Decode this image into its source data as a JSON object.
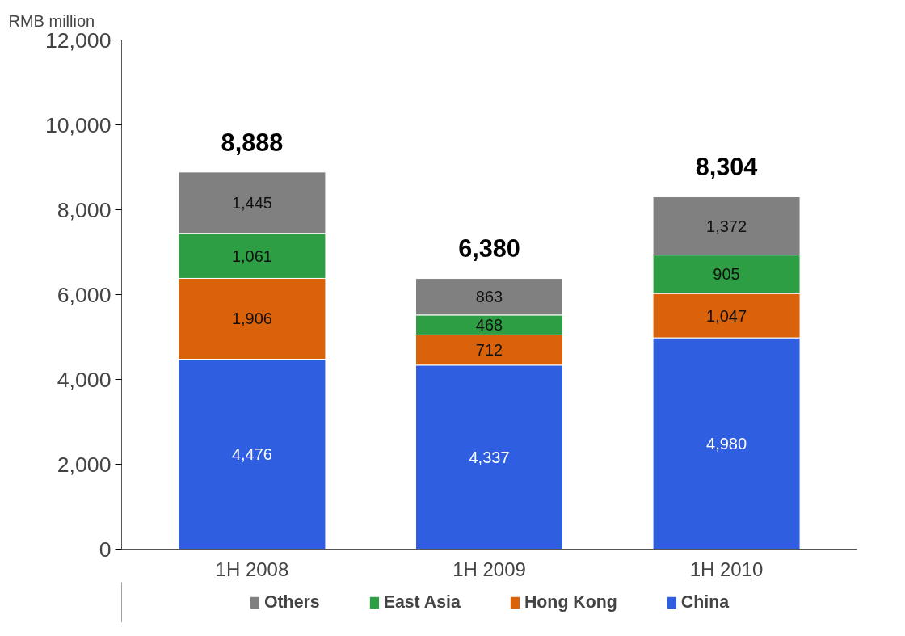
{
  "chart_data": {
    "type": "bar",
    "stacked": true,
    "ylabel": "RMB million",
    "categories": [
      "1H 2008",
      "1H 2009",
      "1H 2010"
    ],
    "series": [
      {
        "name": "China",
        "color": "#2f5fe0",
        "values": [
          4476,
          4337,
          4980
        ]
      },
      {
        "name": "Hong Kong",
        "color": "#d9620a",
        "values": [
          1906,
          712,
          1047
        ]
      },
      {
        "name": "East Asia",
        "color": "#2e9e45",
        "values": [
          1061,
          468,
          905
        ]
      },
      {
        "name": "Others",
        "color": "#808080",
        "values": [
          1445,
          863,
          1372
        ]
      }
    ],
    "ylim": [
      0,
      12000
    ],
    "yticks": [
      0,
      {
        "value": 2000,
        "label": "2,000"
      },
      {
        "value": 4000,
        "label": "4,000"
      },
      {
        "value": 6000,
        "label": "6,000"
      },
      {
        "value": 8000,
        "label": "8,000"
      },
      {
        "value": 10000,
        "label": "10,000"
      },
      {
        "value": 12000,
        "label": "12,000"
      }
    ],
    "value_labels": [
      [
        "4,476",
        "4,337",
        "4,980"
      ],
      [
        "1,906",
        "712",
        "1,047"
      ],
      [
        "1,061",
        "468",
        "905"
      ],
      [
        "1,445",
        "863",
        "1,372"
      ]
    ],
    "totals": [
      "8,888",
      "6,380",
      "8,304"
    ],
    "grid": false,
    "legend": "bottom"
  }
}
